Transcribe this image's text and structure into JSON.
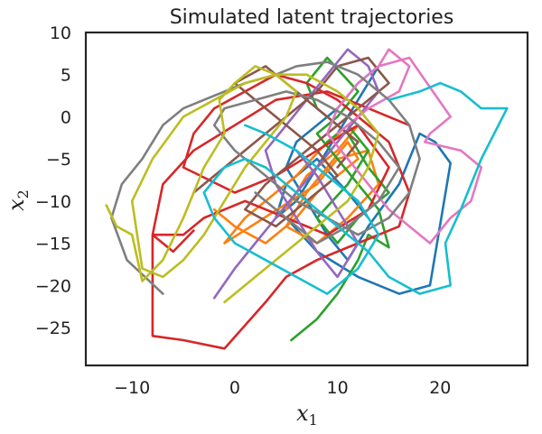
{
  "chart_data": {
    "type": "line",
    "title": "Simulated latent trajectories",
    "xlabel": "x",
    "xlabel_sub": "1",
    "ylabel": "x",
    "ylabel_sub": "2",
    "xlim": [
      -14.5,
      28.5
    ],
    "ylim": [
      -29.5,
      10
    ],
    "xticks": [
      -10,
      0,
      10,
      20
    ],
    "yticks": [
      10,
      5,
      0,
      -5,
      -10,
      -15,
      -20,
      -25
    ],
    "grid": false,
    "legend": "none",
    "colors": [
      "#1f77b4",
      "#ff7f0e",
      "#2ca02c",
      "#d62728",
      "#9467bd",
      "#8c564b",
      "#e377c2",
      "#7f7f7f",
      "#bcbd22",
      "#17becf"
    ],
    "series": [
      {
        "x": [
          5,
          8,
          12,
          16,
          19,
          21,
          19.5,
          18,
          16,
          13,
          11,
          9,
          7,
          5,
          6,
          8,
          10,
          12,
          14,
          12,
          10,
          8,
          6,
          4,
          5,
          8,
          11,
          13
        ],
        "y": [
          -12,
          -16,
          -19,
          -21,
          -20,
          -5.5,
          -3,
          -2,
          -8,
          -13,
          -17,
          -14,
          -10,
          -6,
          -3,
          -1,
          1,
          4,
          6,
          2,
          -2,
          -6,
          -10,
          -12,
          -8,
          -5,
          -9,
          -12
        ]
      },
      {
        "x": [
          -2,
          0,
          3,
          6,
          8,
          10,
          12,
          11,
          9,
          7,
          5,
          8,
          11,
          14,
          13,
          10,
          8,
          -1,
          1,
          3,
          6,
          9,
          12,
          10,
          7,
          5
        ],
        "y": [
          -11,
          -13,
          -15,
          -12,
          -9,
          -7,
          -5,
          -3,
          -6,
          -9,
          -13,
          -15,
          -12,
          -8,
          -4,
          -5,
          -8,
          -15,
          -12,
          -10,
          -7,
          -3,
          -1,
          -4,
          -7,
          -11
        ]
      },
      {
        "x": [
          5.5,
          8,
          10,
          12,
          13,
          15,
          14,
          12,
          10,
          8,
          10,
          12,
          9,
          7,
          8,
          11,
          13,
          15,
          12,
          10,
          8,
          11,
          13,
          11,
          9
        ],
        "y": [
          -26.5,
          -24,
          -21,
          -17,
          -14,
          -15.5,
          -11,
          -8,
          -5,
          -2,
          0,
          3,
          7,
          4,
          1,
          -2,
          -6,
          -9,
          -12,
          -15,
          -12,
          -8,
          -4,
          -1,
          -3
        ]
      },
      {
        "x": [
          -4,
          -6,
          -8,
          -8,
          -5,
          -1,
          3,
          5,
          8,
          12,
          16,
          17,
          15,
          12,
          10,
          7,
          4,
          1,
          -2,
          -4,
          -5,
          0,
          4,
          8,
          12,
          15,
          13,
          9,
          5,
          1,
          -3,
          -5,
          -8,
          -7,
          -4,
          0,
          4,
          9,
          13,
          17
        ],
        "y": [
          -13.5,
          -16,
          -14,
          -26,
          -26.5,
          -27.5,
          -22,
          -19,
          -17,
          -15,
          -13,
          -9,
          -3,
          0,
          2,
          4,
          5,
          3,
          1,
          -2,
          -6,
          -9,
          -7,
          -4,
          -1,
          -6,
          -11,
          -14,
          -12,
          -10,
          -12,
          -14,
          -14,
          -8,
          -4,
          -1,
          2,
          3,
          1,
          -1
        ]
      },
      {
        "x": [
          -2,
          0,
          2,
          4,
          6,
          8,
          10,
          12,
          14,
          13,
          11,
          9,
          7,
          5,
          3,
          4,
          6,
          8,
          10,
          12,
          10,
          8,
          6
        ],
        "y": [
          -21.5,
          -18,
          -15,
          -12,
          -9,
          -6,
          -3,
          0,
          3,
          6,
          8,
          5,
          2,
          -1,
          -4,
          -8,
          -12,
          -16,
          -19,
          -15,
          -11,
          -7,
          -4
        ]
      },
      {
        "x": [
          -4,
          -1,
          2,
          5,
          8,
          10,
          13,
          15,
          12,
          9,
          6,
          3,
          1,
          4,
          7,
          10,
          8,
          5,
          2,
          0,
          3,
          6,
          9,
          12,
          10
        ],
        "y": [
          -9,
          -6,
          -3,
          0,
          3,
          6,
          7,
          4,
          1,
          -2,
          -5,
          -8,
          -11,
          -13,
          -10,
          -7,
          -4,
          -1,
          2,
          4,
          6,
          3,
          0,
          -3,
          -6
        ]
      },
      {
        "x": [
          14,
          17,
          21,
          19,
          18.5,
          22,
          24,
          23,
          21,
          19,
          17,
          15,
          13,
          11,
          9,
          10,
          12,
          14,
          15,
          17,
          16,
          13,
          10
        ],
        "y": [
          6,
          7,
          0,
          -2,
          -3,
          -4,
          -6,
          -10,
          -12,
          -15,
          -13,
          -11,
          -8,
          -5,
          -2,
          1,
          4,
          6,
          8,
          6,
          3,
          1,
          -2
        ]
      },
      {
        "x": [
          -7,
          -10.5,
          -12,
          -11,
          -9,
          -7,
          -5,
          -3,
          -1,
          1,
          4,
          6,
          9,
          12,
          15,
          17,
          18,
          17,
          15,
          12,
          9,
          6,
          3,
          0,
          -2,
          -1,
          2,
          5,
          8,
          11,
          14,
          16,
          14,
          11,
          8,
          5,
          2
        ],
        "y": [
          -21,
          -17,
          -12,
          -8,
          -5,
          -1,
          1,
          2,
          3,
          4,
          5,
          6,
          6.5,
          5,
          2,
          -1,
          -5,
          -9,
          -12,
          -14,
          -12,
          -10,
          -7,
          -4,
          -1,
          1,
          2,
          3,
          2,
          0,
          -3,
          -6,
          -10,
          -13,
          -15,
          -12,
          -9
        ]
      },
      {
        "x": [
          -12.5,
          -11.5,
          -10,
          -9,
          -7,
          -5,
          -3,
          -1,
          -1.5,
          0,
          2,
          4,
          6,
          5,
          3,
          1,
          -1,
          -3,
          -5,
          -7,
          -9,
          -10,
          -8,
          -5,
          -2,
          1,
          4,
          7,
          10,
          12,
          14,
          13,
          11,
          8,
          5,
          2,
          -1
        ],
        "y": [
          -10.5,
          -13,
          -14,
          -19.5,
          -17,
          -12,
          -6,
          -2,
          2,
          4,
          6,
          5,
          3,
          0,
          -3,
          -6,
          -10,
          -14,
          -17,
          -19,
          -18,
          -10,
          -5,
          0,
          2,
          4,
          5,
          5,
          3,
          1,
          -2,
          -6,
          -10,
          -13,
          -16,
          -19,
          -22
        ]
      },
      {
        "x": [
          15,
          18,
          20,
          22,
          24,
          26.5,
          24,
          22,
          20.5,
          21,
          18,
          15,
          13,
          11,
          9,
          7,
          5,
          3,
          1,
          -1,
          -3,
          -2,
          0,
          3,
          6,
          9,
          12,
          14,
          12,
          9,
          6,
          3,
          1
        ],
        "y": [
          2,
          3,
          4,
          3,
          1,
          1,
          -5,
          -11,
          -15,
          -20,
          -21,
          -19,
          -16,
          -14,
          -12,
          -10,
          -8,
          -6,
          -5,
          -6,
          -9,
          -12,
          -15,
          -17,
          -19,
          -21,
          -18,
          -14,
          -10,
          -7,
          -4,
          -2,
          -1
        ]
      }
    ]
  }
}
